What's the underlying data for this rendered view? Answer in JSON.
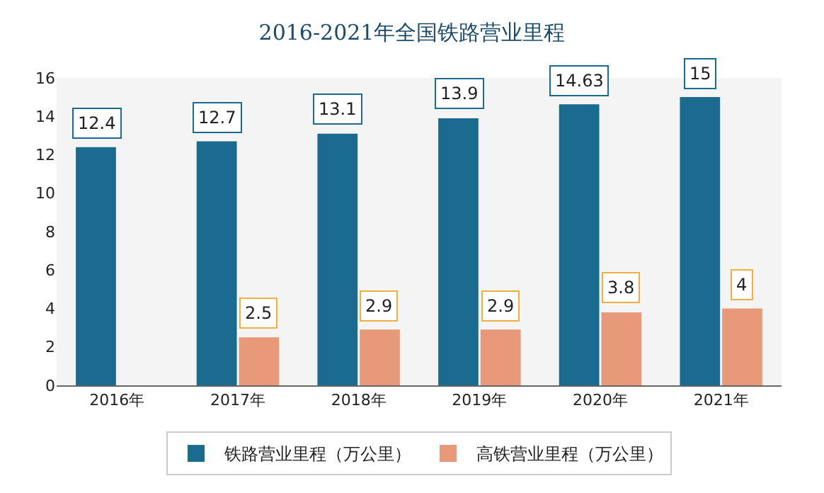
{
  "chart_data": {
    "type": "bar",
    "title": "2016-2021年全国铁路营业里程",
    "categories": [
      "2016年",
      "2017年",
      "2018年",
      "2019年",
      "2020年",
      "2021年"
    ],
    "series": [
      {
        "name": "铁路营业里程（万公里）",
        "color": "#1b6a8f",
        "values": [
          12.4,
          12.7,
          13.1,
          13.9,
          14.63,
          15
        ]
      },
      {
        "name": "高铁营业里程（万公里）",
        "color": "#e8997a",
        "values": [
          null,
          2.5,
          2.9,
          2.9,
          3.8,
          4
        ]
      }
    ],
    "ylim": [
      0,
      16
    ],
    "yticks": [
      0,
      2,
      4,
      6,
      8,
      10,
      12,
      14,
      16
    ],
    "grid": false,
    "legend": "bottom",
    "data_labels": true
  }
}
